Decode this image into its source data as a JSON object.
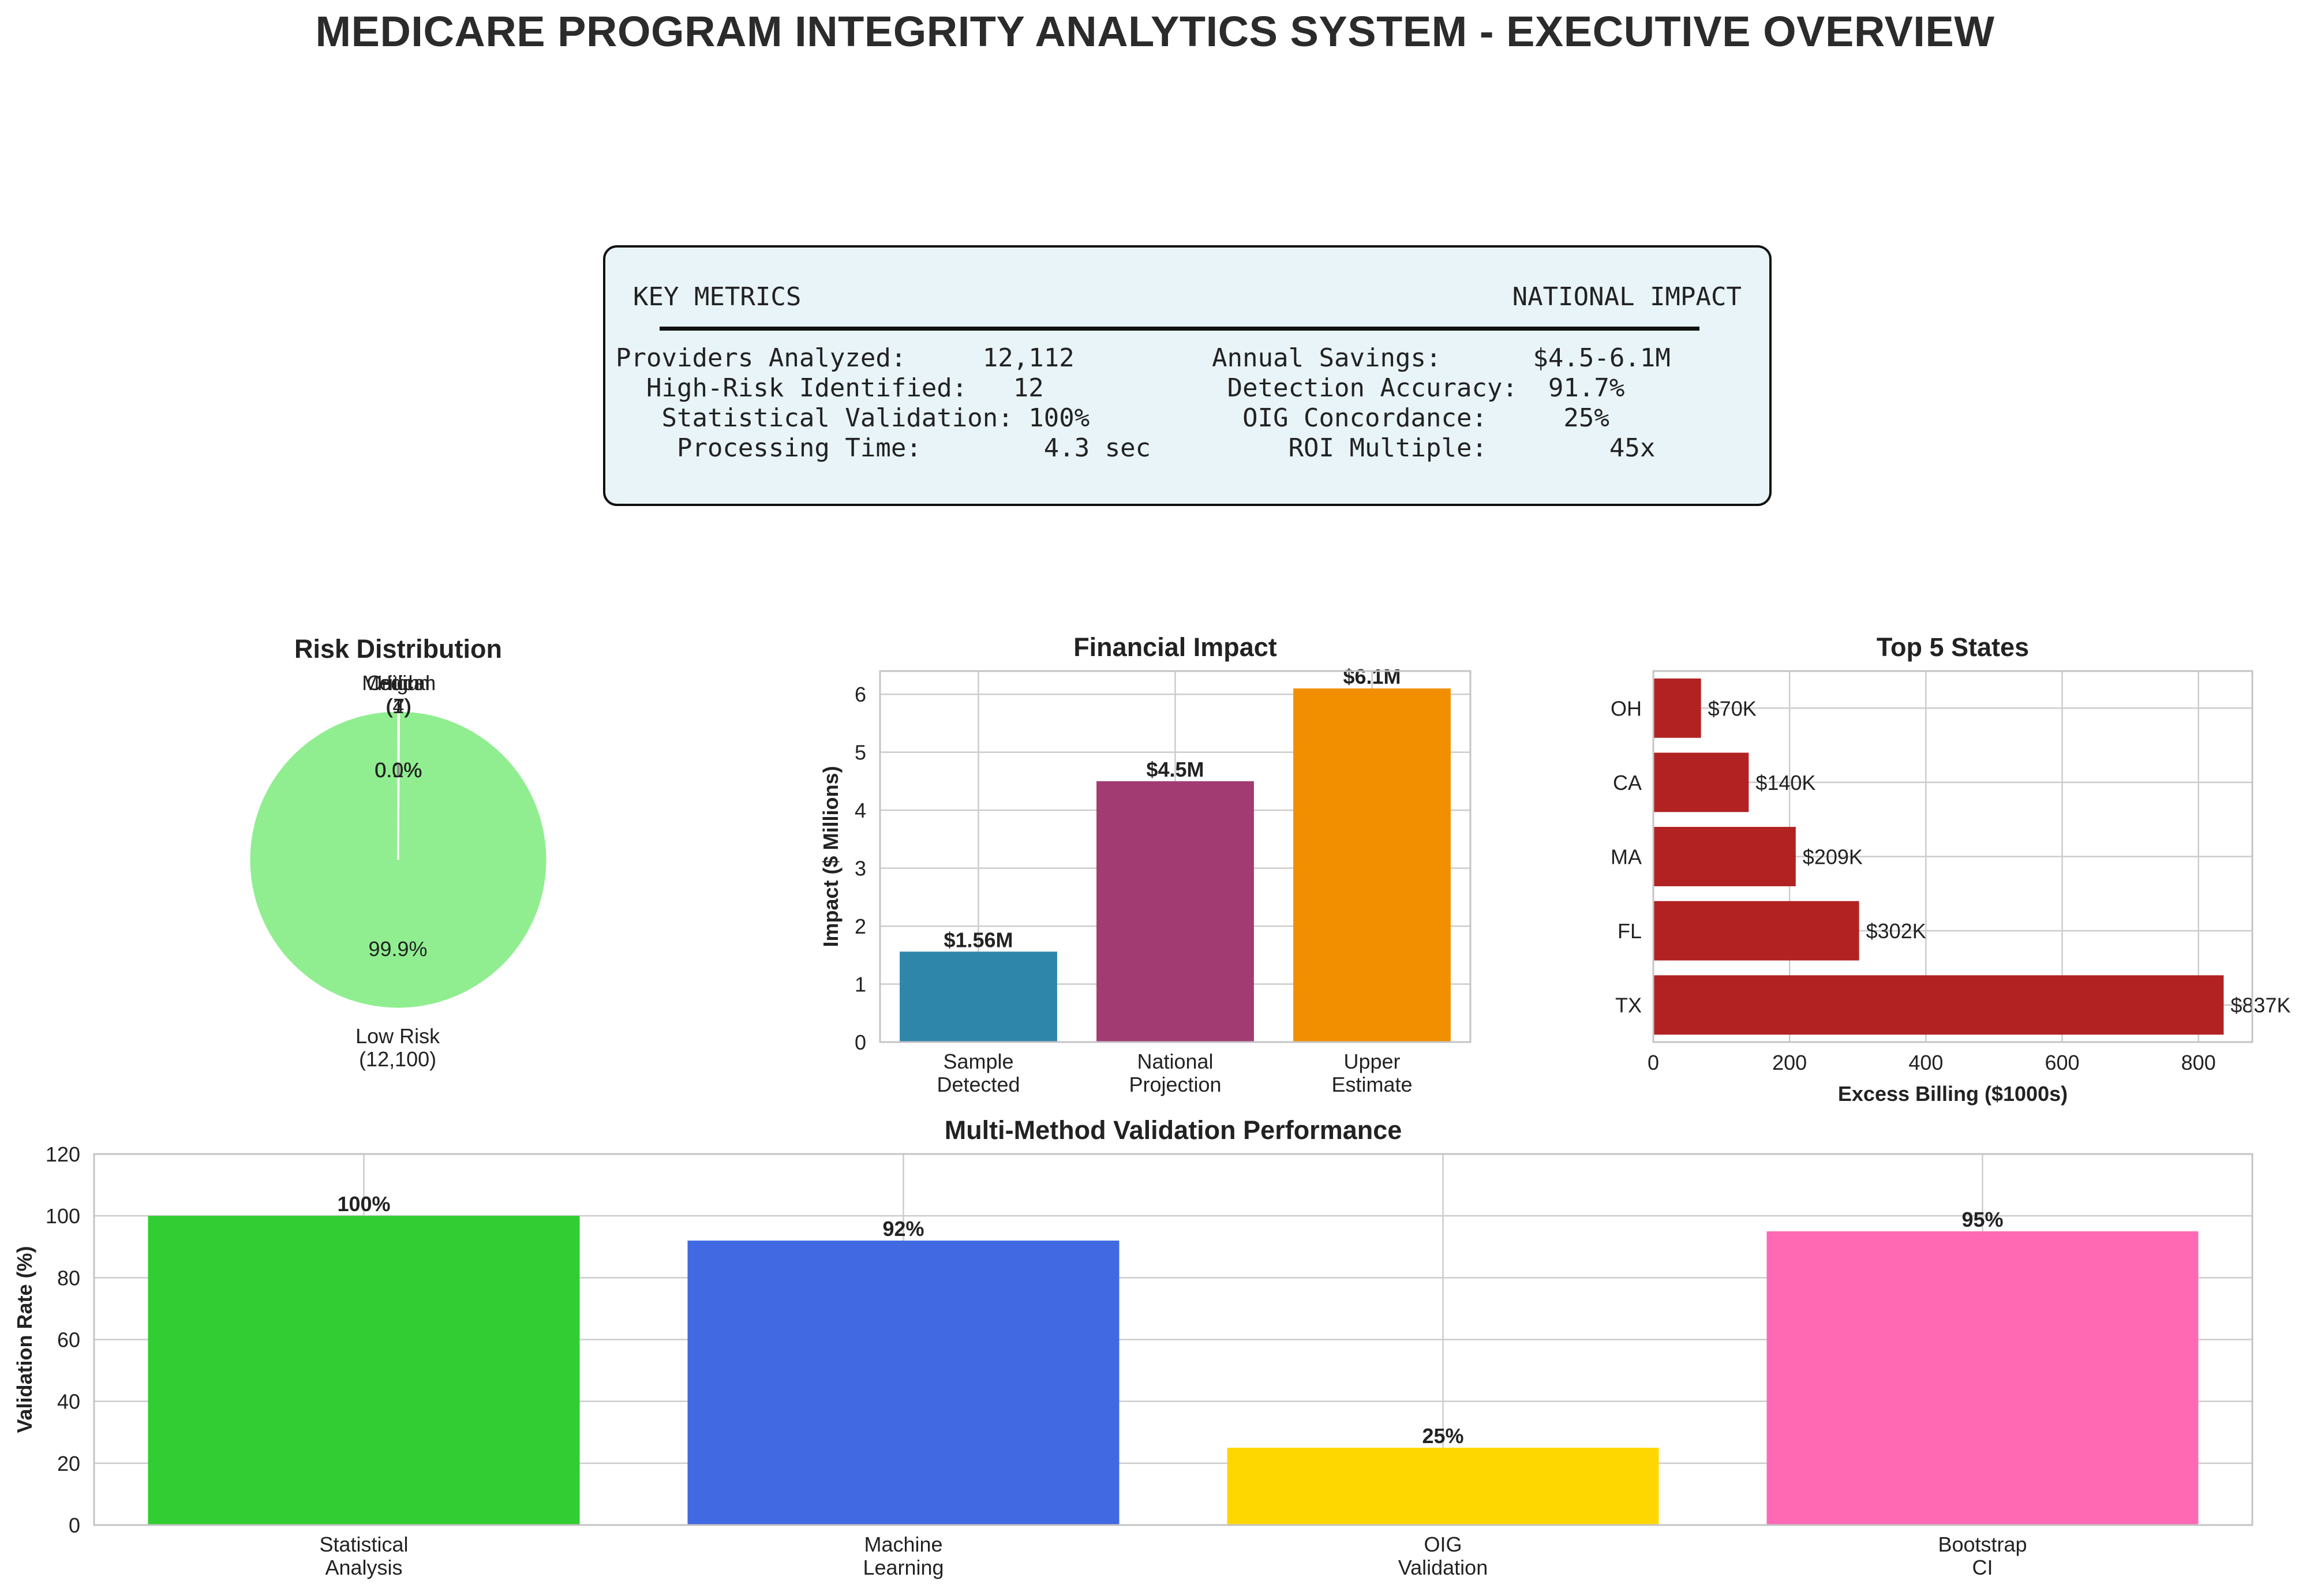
{
  "title": "MEDICARE PROGRAM INTEGRITY ANALYTICS SYSTEM - EXECUTIVE OVERVIEW",
  "metrics": {
    "left_header": "KEY METRICS",
    "right_header": "NATIONAL IMPACT",
    "lines": [
      "Providers Analyzed:     12,112         Annual Savings:      $4.5-6.1M",
      "  High-Risk Identified:   12            Detection Accuracy:  91.7%",
      "   Statistical Validation: 100%          OIG Concordance:     25%",
      "    Processing Time:        4.3 sec         ROI Multiple:        45x"
    ],
    "box_color": "#e8f4f8"
  },
  "chart_data": [
    {
      "id": "risk",
      "type": "pie",
      "title": "Risk Distribution",
      "slices": [
        {
          "label": "Low Risk\n(12,100)",
          "value": 12100,
          "pct_label": "99.9%",
          "color": "#90ee90"
        },
        {
          "label": "Medium\n(7)",
          "value": 7,
          "pct_label": "0.1%",
          "color": "#ffa500"
        },
        {
          "label": "High\n(4)",
          "value": 4,
          "pct_label": "0.0%",
          "color": "#ff6347"
        },
        {
          "label": "Critical\n(1)",
          "value": 1,
          "pct_label": "0.0%",
          "color": "#8b0000"
        }
      ]
    },
    {
      "id": "financial",
      "type": "bar",
      "title": "Financial Impact",
      "ylabel": "Impact ($ Millions)",
      "xlabel": "",
      "ylim": [
        0,
        6.4
      ],
      "yticks": [
        0,
        1,
        2,
        3,
        4,
        5,
        6
      ],
      "categories": [
        "Sample\nDetected",
        "National\nProjection",
        "Upper\nEstimate"
      ],
      "values": [
        1.56,
        4.5,
        6.1
      ],
      "value_labels": [
        "$1.56M",
        "$4.5M",
        "$6.1M"
      ],
      "colors": [
        "#2e86ab",
        "#a23b72",
        "#f18f01"
      ],
      "grid": true
    },
    {
      "id": "states",
      "type": "bar",
      "orientation": "horizontal",
      "title": "Top 5 States",
      "xlabel": "Excess Billing ($1000s)",
      "ylabel": "",
      "xlim": [
        0,
        879
      ],
      "xticks": [
        0,
        200,
        400,
        600,
        800
      ],
      "categories": [
        "TX",
        "FL",
        "MA",
        "CA",
        "OH"
      ],
      "values": [
        837,
        302,
        209,
        140,
        70
      ],
      "value_labels": [
        "$837K",
        "$302K",
        "$209K",
        "$140K",
        "$70K"
      ],
      "color": "#b22222",
      "grid": true
    },
    {
      "id": "validation",
      "type": "bar",
      "title": "Multi-Method Validation Performance",
      "ylabel": "Validation Rate (%)",
      "xlabel": "",
      "ylim": [
        0,
        120
      ],
      "yticks": [
        0,
        20,
        40,
        60,
        80,
        100,
        120
      ],
      "categories": [
        "Statistical\nAnalysis",
        "Machine\nLearning",
        "OIG\nValidation",
        "Bootstrap\nCI"
      ],
      "values": [
        100,
        92,
        25,
        95
      ],
      "value_labels": [
        "100%",
        "92%",
        "25%",
        "95%"
      ],
      "colors": [
        "#32cd32",
        "#4169e1",
        "#ffd700",
        "#ff69b4"
      ],
      "grid": true
    }
  ]
}
